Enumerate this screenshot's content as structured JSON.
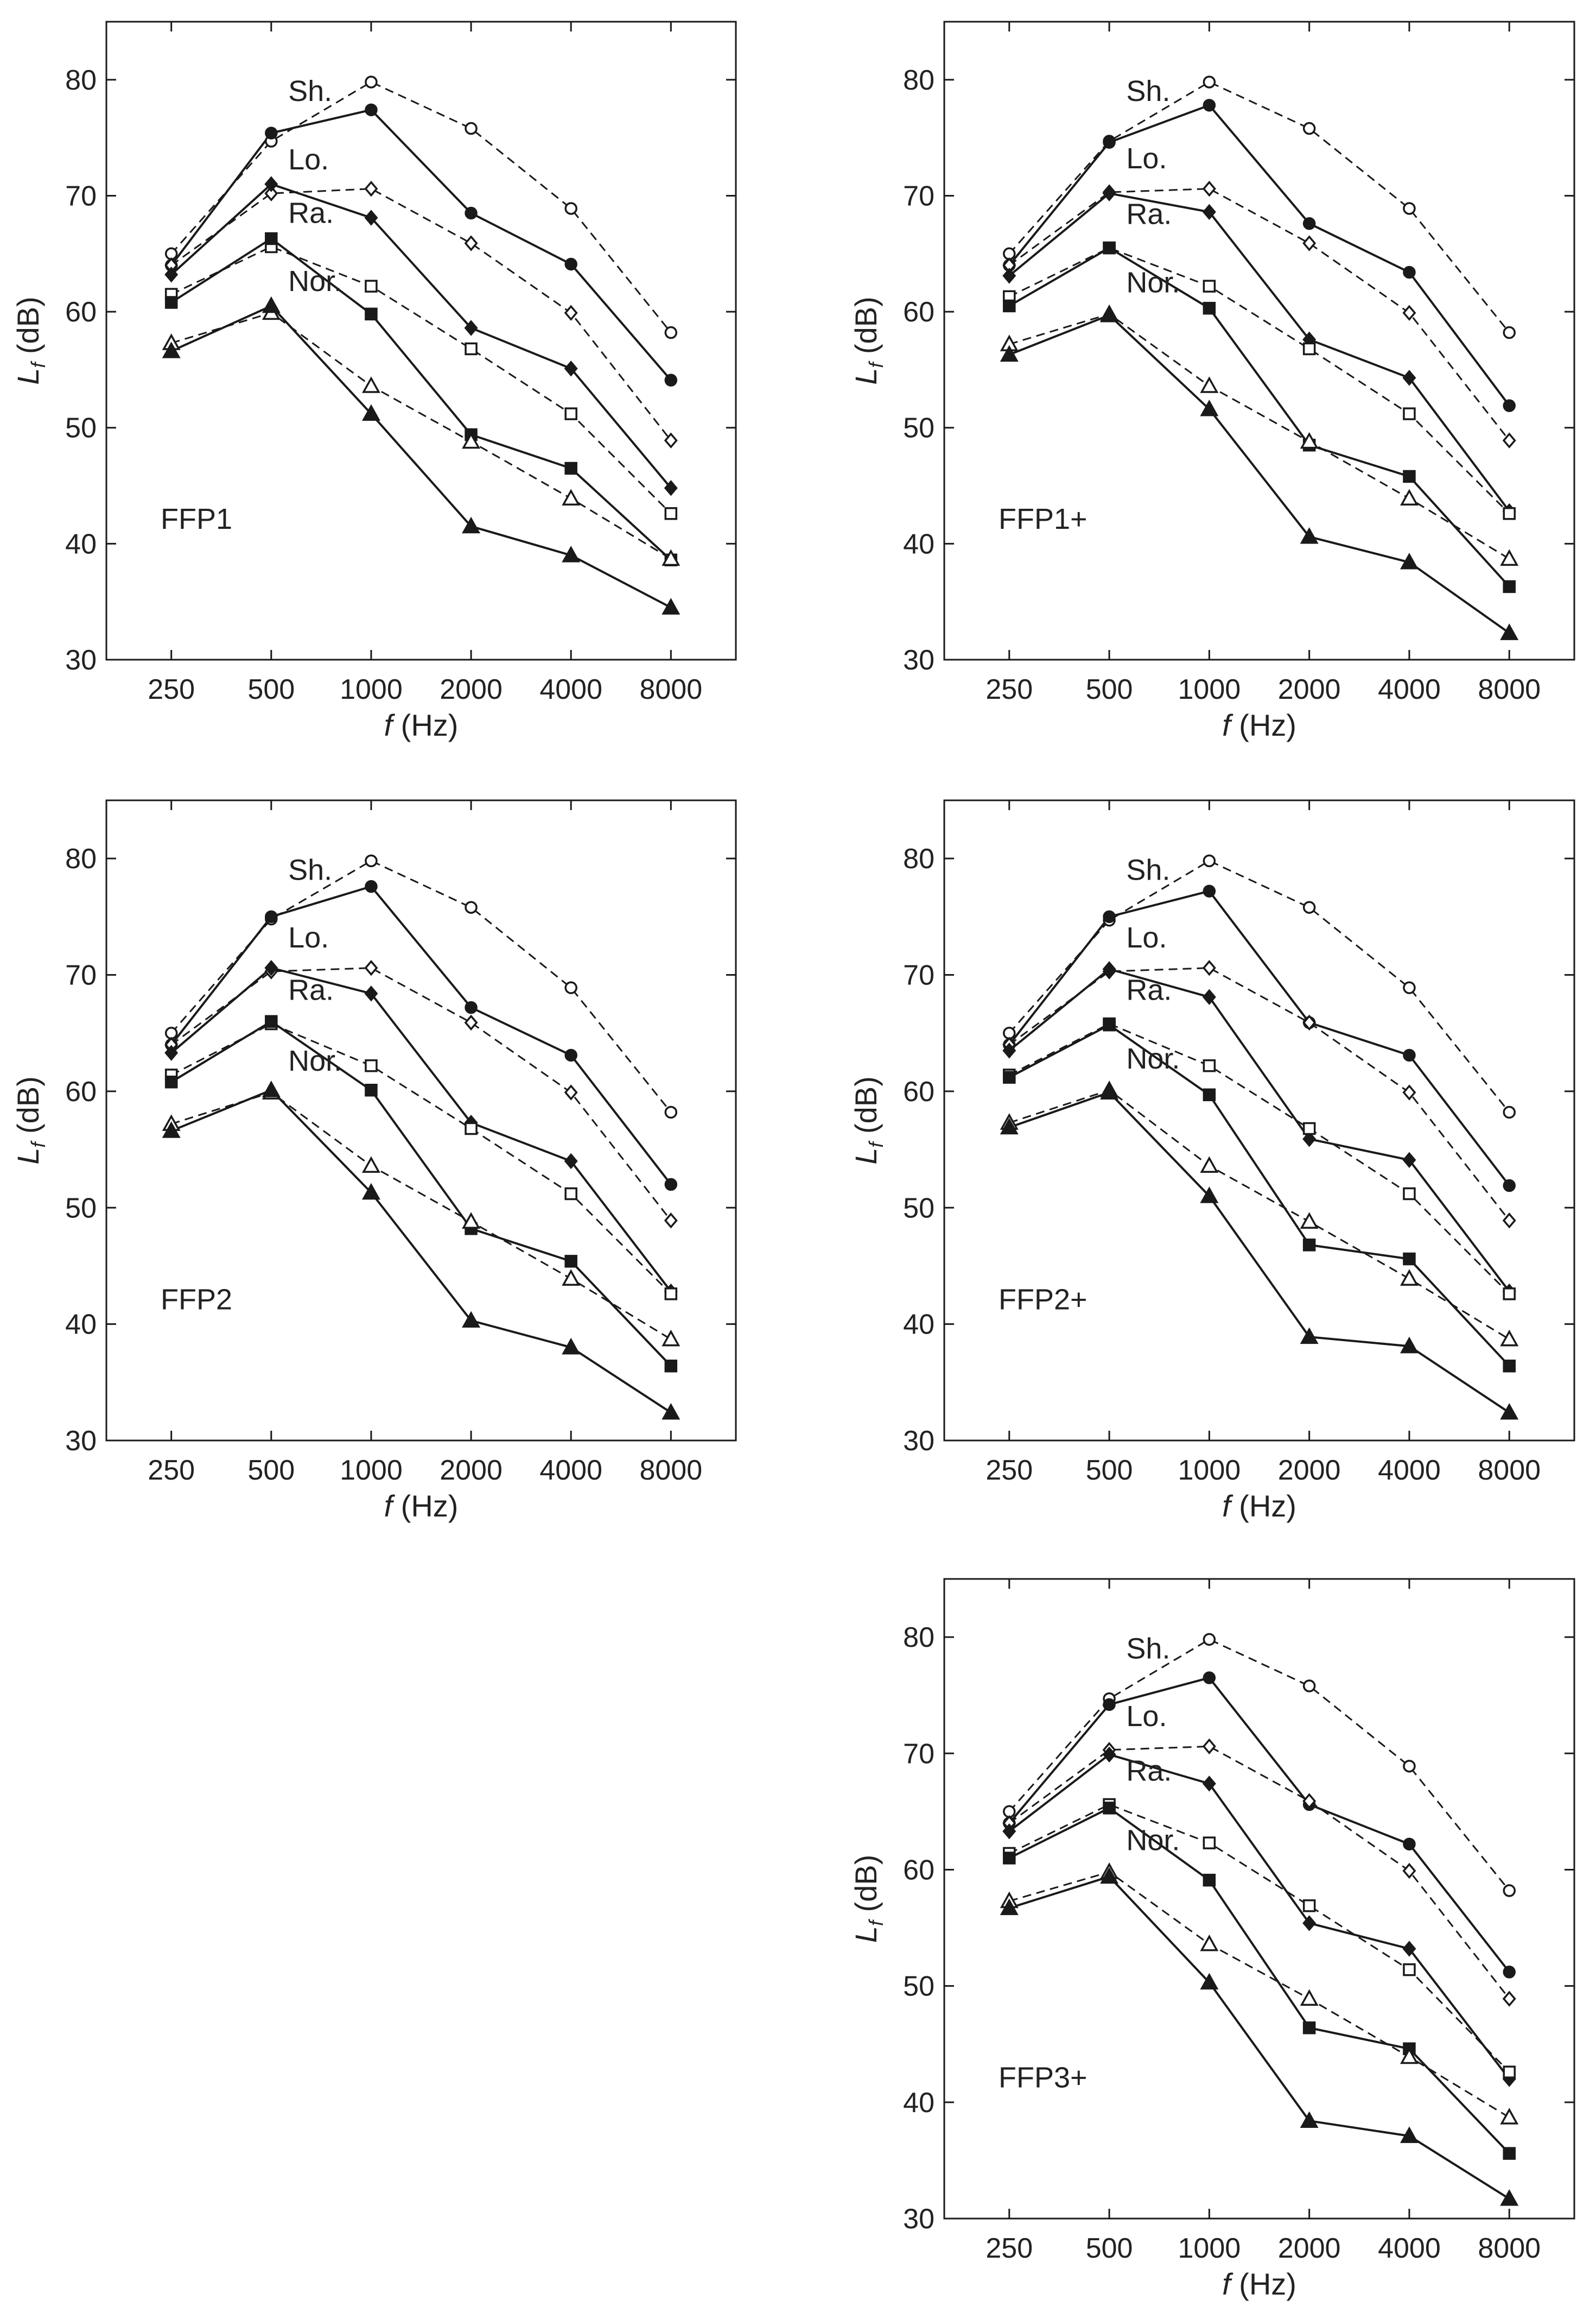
{
  "chart_data": [
    {
      "type": "line",
      "title": "FFP1",
      "xlabel_italic": "f",
      "xlabel_unit": "(Hz)",
      "ylabel_italic": "L",
      "ylabel_sub": "f",
      "ylabel_unit": "(dB)",
      "categories": [
        "250",
        "500",
        "1000",
        "2000",
        "4000",
        "8000"
      ],
      "yticks": [
        "30",
        "40",
        "50",
        "60",
        "70",
        "80"
      ],
      "ylim": [
        30,
        85
      ],
      "series": [
        {
          "name": "Sh. open",
          "label": "Sh.",
          "marker": "circle",
          "filled": false,
          "dashed": true,
          "values": [
            65,
            74.7,
            79.8,
            75.8,
            68.9,
            58.2
          ]
        },
        {
          "name": "Sh. filled",
          "marker": "circle",
          "filled": true,
          "dashed": false,
          "values": [
            64,
            75.4,
            77.4,
            68.5,
            64.1,
            54.1
          ]
        },
        {
          "name": "Lo. open",
          "label": "Lo.",
          "marker": "diamond",
          "filled": false,
          "dashed": true,
          "values": [
            64,
            70.2,
            70.6,
            65.9,
            59.9,
            48.9
          ]
        },
        {
          "name": "Lo. filled",
          "marker": "diamond",
          "filled": true,
          "dashed": false,
          "values": [
            63.2,
            71,
            68.1,
            58.6,
            55.1,
            44.8
          ]
        },
        {
          "name": "Ra. open",
          "label": "Ra.",
          "marker": "square",
          "filled": false,
          "dashed": true,
          "values": [
            61.5,
            65.6,
            62.2,
            56.8,
            51.2,
            42.6
          ]
        },
        {
          "name": "Ra. filled",
          "marker": "square",
          "filled": true,
          "dashed": false,
          "values": [
            60.8,
            66.3,
            59.8,
            49.4,
            46.5,
            38.6
          ]
        },
        {
          "name": "Nor. open",
          "label": "Nor.",
          "marker": "triangle",
          "filled": false,
          "dashed": true,
          "values": [
            57.3,
            59.9,
            53.6,
            48.8,
            43.9,
            38.7
          ]
        },
        {
          "name": "Nor. filled",
          "marker": "triangle",
          "filled": true,
          "dashed": false,
          "values": [
            56.6,
            60.5,
            51.2,
            41.5,
            39,
            34.5
          ]
        }
      ]
    },
    {
      "type": "line",
      "title": "FFP1+",
      "xlabel_italic": "f",
      "xlabel_unit": "(Hz)",
      "ylabel_italic": "L",
      "ylabel_sub": "f",
      "ylabel_unit": "(dB)",
      "categories": [
        "250",
        "500",
        "1000",
        "2000",
        "4000",
        "8000"
      ],
      "yticks": [
        "30",
        "40",
        "50",
        "60",
        "70",
        "80"
      ],
      "ylim": [
        30,
        85
      ],
      "series": [
        {
          "name": "Sh. open",
          "label": "Sh.",
          "marker": "circle",
          "filled": false,
          "dashed": true,
          "values": [
            65,
            74.7,
            79.8,
            75.8,
            68.9,
            58.2
          ]
        },
        {
          "name": "Sh. filled",
          "marker": "circle",
          "filled": true,
          "dashed": false,
          "values": [
            64,
            74.6,
            77.8,
            67.6,
            63.4,
            51.9
          ]
        },
        {
          "name": "Lo. open",
          "label": "Lo.",
          "marker": "diamond",
          "filled": false,
          "dashed": true,
          "values": [
            64,
            70.3,
            70.6,
            65.9,
            59.9,
            48.9
          ]
        },
        {
          "name": "Lo. filled",
          "marker": "diamond",
          "filled": true,
          "dashed": false,
          "values": [
            63.1,
            70.2,
            68.6,
            57.6,
            54.3,
            42.8
          ]
        },
        {
          "name": "Ra. open",
          "label": "Ra.",
          "marker": "square",
          "filled": false,
          "dashed": true,
          "values": [
            61.3,
            65.5,
            62.2,
            56.8,
            51.2,
            42.6
          ]
        },
        {
          "name": "Ra. filled",
          "marker": "square",
          "filled": true,
          "dashed": false,
          "values": [
            60.5,
            65.5,
            60.3,
            48.5,
            45.8,
            36.3
          ]
        },
        {
          "name": "Nor. open",
          "label": "Nor.",
          "marker": "triangle",
          "filled": false,
          "dashed": true,
          "values": [
            57.2,
            59.8,
            53.6,
            48.8,
            43.9,
            38.7
          ]
        },
        {
          "name": "Nor. filled",
          "marker": "triangle",
          "filled": true,
          "dashed": false,
          "values": [
            56.3,
            59.7,
            51.6,
            40.6,
            38.4,
            32.3
          ]
        }
      ]
    },
    {
      "type": "line",
      "title": "FFP2",
      "xlabel_italic": "f",
      "xlabel_unit": "(Hz)",
      "ylabel_italic": "L",
      "ylabel_sub": "f",
      "ylabel_unit": "(dB)",
      "categories": [
        "250",
        "500",
        "1000",
        "2000",
        "4000",
        "8000"
      ],
      "yticks": [
        "30",
        "40",
        "50",
        "60",
        "70",
        "80"
      ],
      "ylim": [
        30,
        85
      ],
      "series": [
        {
          "name": "Sh. open",
          "label": "Sh.",
          "marker": "circle",
          "filled": false,
          "dashed": true,
          "values": [
            65,
            74.8,
            79.8,
            75.8,
            68.9,
            58.2
          ]
        },
        {
          "name": "Sh. filled",
          "marker": "circle",
          "filled": true,
          "dashed": false,
          "values": [
            64,
            75,
            77.6,
            67.2,
            63.1,
            52
          ]
        },
        {
          "name": "Lo. open",
          "label": "Lo.",
          "marker": "diamond",
          "filled": false,
          "dashed": true,
          "values": [
            64,
            70.3,
            70.6,
            65.9,
            59.9,
            48.9
          ]
        },
        {
          "name": "Lo. filled",
          "marker": "diamond",
          "filled": true,
          "dashed": false,
          "values": [
            63.3,
            70.6,
            68.4,
            57.3,
            54,
            42.8
          ]
        },
        {
          "name": "Ra. open",
          "label": "Ra.",
          "marker": "square",
          "filled": false,
          "dashed": true,
          "values": [
            61.4,
            65.8,
            62.2,
            56.8,
            51.2,
            42.6
          ]
        },
        {
          "name": "Ra. filled",
          "marker": "square",
          "filled": true,
          "dashed": false,
          "values": [
            60.8,
            66,
            60.1,
            48.2,
            45.4,
            36.4
          ]
        },
        {
          "name": "Nor. open",
          "label": "Nor.",
          "marker": "triangle",
          "filled": false,
          "dashed": true,
          "values": [
            57.2,
            59.9,
            53.6,
            48.8,
            43.9,
            38.7
          ]
        },
        {
          "name": "Nor. filled",
          "marker": "triangle",
          "filled": true,
          "dashed": false,
          "values": [
            56.6,
            60.1,
            51.3,
            40.3,
            38,
            32.4
          ]
        }
      ]
    },
    {
      "type": "line",
      "title": "FFP2+",
      "xlabel_italic": "f",
      "xlabel_unit": "(Hz)",
      "ylabel_italic": "L",
      "ylabel_sub": "f",
      "ylabel_unit": "(dB)",
      "categories": [
        "250",
        "500",
        "1000",
        "2000",
        "4000",
        "8000"
      ],
      "yticks": [
        "30",
        "40",
        "50",
        "60",
        "70",
        "80"
      ],
      "ylim": [
        30,
        85
      ],
      "series": [
        {
          "name": "Sh. open",
          "label": "Sh.",
          "marker": "circle",
          "filled": false,
          "dashed": true,
          "values": [
            65,
            74.7,
            79.8,
            75.8,
            68.9,
            58.2
          ]
        },
        {
          "name": "Sh. filled",
          "marker": "circle",
          "filled": true,
          "dashed": false,
          "values": [
            64,
            75,
            77.2,
            65.9,
            63.1,
            51.9
          ]
        },
        {
          "name": "Lo. open",
          "label": "Lo.",
          "marker": "diamond",
          "filled": false,
          "dashed": true,
          "values": [
            64,
            70.3,
            70.6,
            65.9,
            59.9,
            48.9
          ]
        },
        {
          "name": "Lo. filled",
          "marker": "diamond",
          "filled": true,
          "dashed": false,
          "values": [
            63.5,
            70.5,
            68.1,
            55.9,
            54.1,
            42.8
          ]
        },
        {
          "name": "Ra. open",
          "label": "Ra.",
          "marker": "square",
          "filled": false,
          "dashed": true,
          "values": [
            61.4,
            65.8,
            62.2,
            56.8,
            51.2,
            42.6
          ]
        },
        {
          "name": "Ra. filled",
          "marker": "square",
          "filled": true,
          "dashed": false,
          "values": [
            61.2,
            65.7,
            59.7,
            46.8,
            45.6,
            36.4
          ]
        },
        {
          "name": "Nor. open",
          "label": "Nor.",
          "marker": "triangle",
          "filled": false,
          "dashed": true,
          "values": [
            57.3,
            60.1,
            53.6,
            48.8,
            43.9,
            38.7
          ]
        },
        {
          "name": "Nor. filled",
          "marker": "triangle",
          "filled": true,
          "dashed": false,
          "values": [
            56.9,
            59.9,
            51,
            38.9,
            38.1,
            32.4
          ]
        }
      ]
    },
    {
      "type": "line",
      "title": "FFP3+",
      "xlabel_italic": "f",
      "xlabel_unit": "(Hz)",
      "ylabel_italic": "L",
      "ylabel_sub": "f",
      "ylabel_unit": "(dB)",
      "categories": [
        "250",
        "500",
        "1000",
        "2000",
        "4000",
        "8000"
      ],
      "yticks": [
        "30",
        "40",
        "50",
        "60",
        "70",
        "80"
      ],
      "ylim": [
        30,
        85
      ],
      "series": [
        {
          "name": "Sh. open",
          "label": "Sh.",
          "marker": "circle",
          "filled": false,
          "dashed": true,
          "values": [
            65,
            74.7,
            79.8,
            75.8,
            68.9,
            58.2
          ]
        },
        {
          "name": "Sh. filled",
          "marker": "circle",
          "filled": true,
          "dashed": false,
          "values": [
            64,
            74.2,
            76.5,
            65.6,
            62.2,
            51.2
          ]
        },
        {
          "name": "Lo. open",
          "label": "Lo.",
          "marker": "diamond",
          "filled": false,
          "dashed": true,
          "values": [
            64,
            70.3,
            70.6,
            65.9,
            59.9,
            48.9
          ]
        },
        {
          "name": "Lo. filled",
          "marker": "diamond",
          "filled": true,
          "dashed": false,
          "values": [
            63.3,
            69.9,
            67.4,
            55.4,
            53.2,
            42
          ]
        },
        {
          "name": "Ra. open",
          "label": "Ra.",
          "marker": "square",
          "filled": false,
          "dashed": true,
          "values": [
            61.4,
            65.6,
            62.3,
            56.9,
            51.4,
            42.6
          ]
        },
        {
          "name": "Ra. filled",
          "marker": "square",
          "filled": true,
          "dashed": false,
          "values": [
            61,
            65.3,
            59.1,
            46.4,
            44.6,
            35.6
          ]
        },
        {
          "name": "Nor. open",
          "label": "Nor.",
          "marker": "triangle",
          "filled": false,
          "dashed": true,
          "values": [
            57.3,
            59.8,
            53.6,
            48.9,
            43.9,
            38.7
          ]
        },
        {
          "name": "Nor. filled",
          "marker": "triangle",
          "filled": true,
          "dashed": false,
          "values": [
            56.7,
            59.4,
            50.3,
            38.4,
            37.1,
            31.7
          ]
        }
      ]
    }
  ]
}
